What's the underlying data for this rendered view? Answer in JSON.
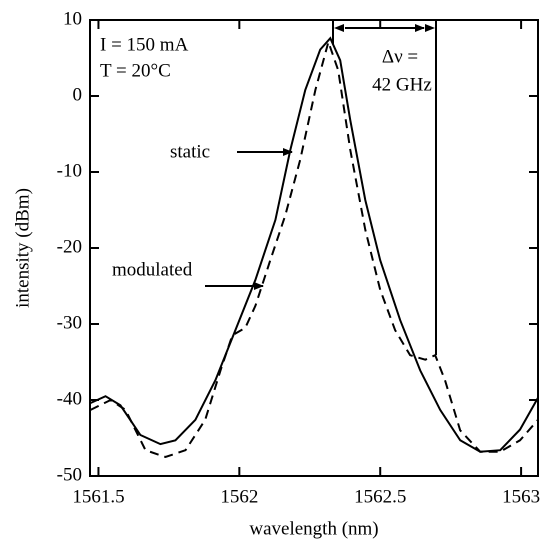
{
  "chart_data": {
    "type": "line",
    "xlabel": "wavelength (nm)",
    "ylabel": "intensity (dBm)",
    "xlim": [
      1561.47,
      1563.06
    ],
    "xticks": [
      1561.5,
      1562,
      1562.5,
      1563
    ],
    "ylim": [
      -50,
      10
    ],
    "yticks": [
      10,
      0,
      -10,
      -20,
      -30,
      -40,
      -50
    ],
    "annotations": [
      "I = 150 mA",
      "T = 20°C",
      "static",
      "modulated",
      "Δν =",
      "42 GHz"
    ],
    "series": [
      {
        "color": "#000000",
        "line_style": "solid",
        "x": [
          1561.472,
          1561.525,
          1561.578,
          1561.649,
          1561.72,
          1561.773,
          1561.844,
          1561.915,
          1561.986,
          1562.057,
          1562.128,
          1562.181,
          1562.234,
          1562.287,
          1562.323,
          1562.358,
          1562.394,
          1562.447,
          1562.5,
          1562.571,
          1562.642,
          1562.713,
          1562.784,
          1562.855,
          1562.926,
          1562.996,
          1563.06
        ],
        "values": [
          -40.4,
          -39.5,
          -40.7,
          -44.6,
          -45.8,
          -45.3,
          -42.6,
          -37.4,
          -30.8,
          -24.2,
          -16.3,
          -7.1,
          0.8,
          6.1,
          7.6,
          4.7,
          -3.2,
          -13.7,
          -21.6,
          -29.5,
          -36.1,
          -41.3,
          -45.3,
          -46.8,
          -46.6,
          -43.9,
          -39.7
        ]
      },
      {
        "color": "#000000",
        "line_style": "dashed",
        "x": [
          1561.472,
          1561.543,
          1561.596,
          1561.667,
          1561.738,
          1561.809,
          1561.879,
          1561.933,
          1561.975,
          1562.021,
          1562.057,
          1562.11,
          1562.163,
          1562.216,
          1562.27,
          1562.316,
          1562.351,
          1562.394,
          1562.447,
          1562.5,
          1562.553,
          1562.606,
          1562.66,
          1562.695,
          1562.73,
          1562.784,
          1562.855,
          1562.926,
          1562.996,
          1563.06
        ],
        "values": [
          -41.3,
          -40.0,
          -41.3,
          -46.6,
          -47.5,
          -46.6,
          -42.6,
          -36.1,
          -31.5,
          -30.5,
          -27.6,
          -21.6,
          -15.7,
          -8.4,
          0.8,
          7.1,
          3.4,
          -7.1,
          -17.6,
          -25.5,
          -30.8,
          -34.1,
          -34.7,
          -34.1,
          -37.4,
          -44.0,
          -46.8,
          -46.8,
          -45.3,
          -42.6
        ]
      }
    ]
  }
}
